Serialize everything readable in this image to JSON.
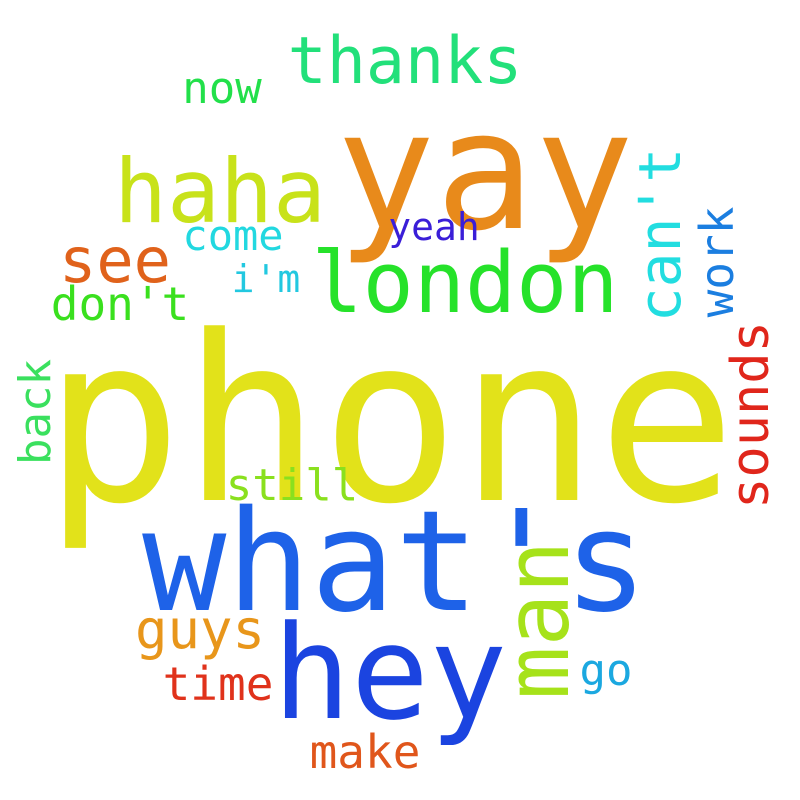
{
  "words": [
    {
      "id": "phone",
      "text": "phone",
      "color": "#e2e21a"
    },
    {
      "id": "yay",
      "text": "yay",
      "color": "#e88a1b"
    },
    {
      "id": "whats",
      "text": "what's",
      "color": "#1e62e8"
    },
    {
      "id": "hey",
      "text": "hey",
      "color": "#1b44e0"
    },
    {
      "id": "london",
      "text": "london",
      "color": "#26e22a"
    },
    {
      "id": "haha",
      "text": "haha",
      "color": "#c8e21a"
    },
    {
      "id": "thanks",
      "text": "thanks",
      "color": "#22e07a"
    },
    {
      "id": "man",
      "text": "man",
      "color": "#a6e21a"
    },
    {
      "id": "see",
      "text": "see",
      "color": "#e0621b"
    },
    {
      "id": "cant",
      "text": "can't",
      "color": "#22dde0"
    },
    {
      "id": "guys",
      "text": "guys",
      "color": "#e8961b"
    },
    {
      "id": "dont",
      "text": "don't",
      "color": "#3ae01e"
    },
    {
      "id": "sounds",
      "text": "sounds",
      "color": "#e0261b"
    },
    {
      "id": "work",
      "text": "work",
      "color": "#1b7ee0"
    },
    {
      "id": "back",
      "text": "back",
      "color": "#3ae05e"
    },
    {
      "id": "make",
      "text": "make",
      "color": "#e0561b"
    },
    {
      "id": "time",
      "text": "time",
      "color": "#e0321b"
    },
    {
      "id": "still",
      "text": "still",
      "color": "#8ae01e"
    },
    {
      "id": "come",
      "text": "come",
      "color": "#22d8e0"
    },
    {
      "id": "now",
      "text": "now",
      "color": "#22e04a"
    },
    {
      "id": "yeah",
      "text": "yeah",
      "color": "#3a1ed8"
    },
    {
      "id": "im",
      "text": "i'm",
      "color": "#22c8e0"
    },
    {
      "id": "go",
      "text": "go",
      "color": "#1ba8e0"
    }
  ]
}
